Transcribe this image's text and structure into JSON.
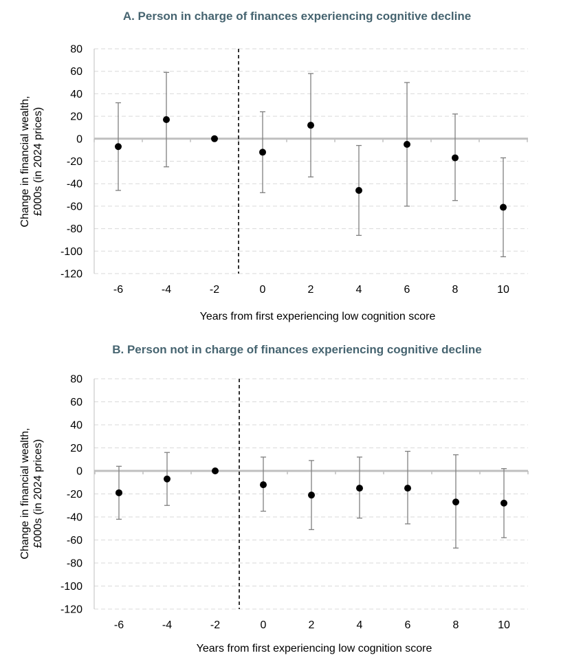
{
  "chart_data": [
    {
      "type": "scatter",
      "title": "A. Person in charge of finances experiencing cognitive decline",
      "xlabel": "Years from first experiencing low cognition score",
      "ylabel_lines": [
        "Change in financial wealth,",
        "£000s (in 2024 prices)"
      ],
      "ylim": [
        -120,
        80
      ],
      "yticks": [
        80,
        60,
        40,
        20,
        0,
        -20,
        -40,
        -60,
        -80,
        -100,
        -120
      ],
      "categories": [
        "-6",
        "-4",
        "-2",
        "0",
        "2",
        "4",
        "6",
        "8",
        "10"
      ],
      "x": [
        -6,
        -4,
        -2,
        0,
        2,
        4,
        6,
        8,
        10
      ],
      "reference_line_x": -1,
      "grid": "horizontal dashed",
      "series": [
        {
          "values": [
            -7,
            17,
            0,
            -12,
            12,
            -46,
            -5,
            -17,
            -61
          ],
          "lower": [
            -46,
            -25,
            null,
            -48,
            -34,
            -86,
            -60,
            -55,
            -105
          ],
          "upper": [
            32,
            59,
            null,
            24,
            58,
            -6,
            50,
            22,
            -17
          ]
        }
      ]
    },
    {
      "type": "scatter",
      "title": "B. Person not in charge of finances experiencing cognitive decline",
      "xlabel": "Years from first experiencing low cognition score",
      "ylabel_lines": [
        "Change in financial wealth,",
        "£000s (in 2024 prices)"
      ],
      "ylim": [
        -120,
        80
      ],
      "yticks": [
        80,
        60,
        40,
        20,
        0,
        -20,
        -40,
        -60,
        -80,
        -100,
        -120
      ],
      "categories": [
        "-6",
        "-4",
        "-2",
        "0",
        "2",
        "4",
        "6",
        "8",
        "10"
      ],
      "x": [
        -6,
        -4,
        -2,
        0,
        2,
        4,
        6,
        8,
        10
      ],
      "reference_line_x": -1,
      "grid": "horizontal dashed",
      "series": [
        {
          "values": [
            -19,
            -7,
            0,
            -12,
            -21,
            -15,
            -15,
            -27,
            -28
          ],
          "lower": [
            -42,
            -30,
            null,
            -35,
            -51,
            -41,
            -46,
            -67,
            -58
          ],
          "upper": [
            4,
            16,
            null,
            12,
            9,
            12,
            17,
            14,
            2
          ]
        }
      ]
    }
  ],
  "colors": {
    "title": "#466470",
    "grid": "#d9d9d9",
    "zero_line": "#bfbfbf",
    "error_bar": "#7f7f7f",
    "point": "#000000"
  }
}
